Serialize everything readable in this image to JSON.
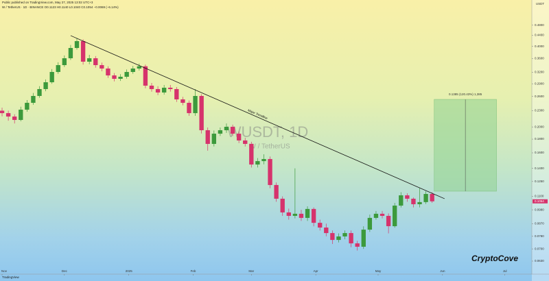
{
  "header": {
    "published": "Public published on TradingView.com, May 27, 2025 13:02 UTC+3",
    "symbol_line": "W / TetherUS · 1D · BINANCE  O0.1123 H0.1140 L0.1040 C0.1054 −0.0069 (−6.14%)",
    "currency": "USDT"
  },
  "watermark": {
    "symbol": "WUSDT, 1D",
    "name": "W / TetherUS"
  },
  "brand": "CryptoCove",
  "footer": "TradingView",
  "chart_data": {
    "type": "candlestick",
    "log_scale": true,
    "grid": false,
    "up_color": "#3c9a3c",
    "down_color": "#d6336c",
    "xlim": [
      -31,
      225
    ],
    "ylim": [
      0.058,
      0.53
    ],
    "xticks": [
      {
        "value": -30,
        "label": "Nov"
      },
      {
        "value": 0,
        "label": "Dec"
      },
      {
        "value": 31,
        "label": "2025"
      },
      {
        "value": 62,
        "label": "Feb"
      },
      {
        "value": 90,
        "label": "Mar"
      },
      {
        "value": 121,
        "label": "Apr"
      },
      {
        "value": 151,
        "label": "May"
      },
      {
        "value": 182,
        "label": "Jun"
      },
      {
        "value": 212,
        "label": "Jul"
      }
    ],
    "yticks": [
      {
        "value": 0.48,
        "label": "0.4800"
      },
      {
        "value": 0.44,
        "label": "0.4400"
      },
      {
        "value": 0.4,
        "label": "0.4000"
      },
      {
        "value": 0.36,
        "label": "0.3600"
      },
      {
        "value": 0.32,
        "label": "0.3200"
      },
      {
        "value": 0.29,
        "label": "0.2900"
      },
      {
        "value": 0.26,
        "label": "0.2600"
      },
      {
        "value": 0.23,
        "label": "0.2300"
      },
      {
        "value": 0.2,
        "label": "0.2000"
      },
      {
        "value": 0.18,
        "label": "0.1800"
      },
      {
        "value": 0.16,
        "label": "0.1600"
      },
      {
        "value": 0.14,
        "label": "0.1400"
      },
      {
        "value": 0.125,
        "label": "0.1250"
      },
      {
        "value": 0.11,
        "label": "0.1100"
      },
      {
        "value": 0.098,
        "label": "0.0980"
      },
      {
        "value": 0.087,
        "label": "0.0870"
      },
      {
        "value": 0.078,
        "label": "0.0780"
      },
      {
        "value": 0.07,
        "label": "0.0700"
      },
      {
        "value": 0.063,
        "label": "0.0630"
      }
    ],
    "x": [
      -30,
      -27,
      -24,
      -21,
      -18,
      -15,
      -12,
      -9,
      -6,
      -3,
      0,
      3,
      6,
      9,
      12,
      15,
      18,
      21,
      24,
      27,
      30,
      33,
      36,
      39,
      42,
      45,
      48,
      51,
      54,
      57,
      60,
      63,
      66,
      69,
      72,
      75,
      78,
      81,
      84,
      87,
      90,
      93,
      96,
      99,
      102,
      105,
      108,
      111,
      114,
      117,
      120,
      123,
      126,
      129,
      132,
      135,
      138,
      141,
      144,
      147,
      150,
      153,
      156,
      159,
      162,
      165,
      168,
      171,
      174,
      177
    ],
    "open": [
      0.23,
      0.2252,
      0.2187,
      0.2124,
      0.232,
      0.2461,
      0.2611,
      0.277,
      0.2938,
      0.321,
      0.3405,
      0.3612,
      0.3946,
      0.4186,
      0.3507,
      0.3612,
      0.3405,
      0.3306,
      0.3116,
      0.3026,
      0.308,
      0.321,
      0.3306,
      0.337,
      0.2853,
      0.277,
      0.269,
      0.2803,
      0.277,
      0.2535,
      0.2461,
      0.2252,
      0.2611,
      0.1944,
      0.1728,
      0.1887,
      0.1944,
      0.2002,
      0.1887,
      0.178,
      0.1728,
      0.1447,
      0.149,
      0.1517,
      0.1213,
      0.1078,
      0.0958,
      0.093,
      0.0947,
      0.0914,
      0.0987,
      0.0876,
      0.0841,
      0.0802,
      0.0756,
      0.0779,
      0.0802,
      0.0734,
      0.0713,
      0.0826,
      0.0914,
      0.0947,
      0.093,
      0.0851,
      0.1016,
      0.111,
      0.1078,
      0.1028,
      0.1047,
      0.1123
    ],
    "high": [
      0.236,
      0.23,
      0.223,
      0.238,
      0.252,
      0.268,
      0.284,
      0.301,
      0.329,
      0.349,
      0.37,
      0.405,
      0.43,
      0.425,
      0.372,
      0.368,
      0.348,
      0.337,
      0.318,
      0.315,
      0.328,
      0.338,
      0.345,
      0.342,
      0.292,
      0.284,
      0.287,
      0.287,
      0.282,
      0.259,
      0.251,
      0.277,
      0.265,
      0.199,
      0.194,
      0.199,
      0.206,
      0.204,
      0.192,
      0.182,
      0.176,
      0.153,
      0.158,
      0.155,
      0.124,
      0.11,
      0.099,
      0.14,
      0.098,
      0.101,
      0.1,
      0.09,
      0.087,
      0.082,
      0.08,
      0.082,
      0.082,
      0.075,
      0.085,
      0.094,
      0.097,
      0.097,
      0.095,
      0.104,
      0.114,
      0.113,
      0.109,
      0.118,
      0.115,
      0.114
    ],
    "low": [
      0.219,
      0.211,
      0.206,
      0.21,
      0.228,
      0.242,
      0.257,
      0.272,
      0.29,
      0.316,
      0.335,
      0.356,
      0.389,
      0.342,
      0.343,
      0.333,
      0.323,
      0.305,
      0.296,
      0.297,
      0.303,
      0.316,
      0.325,
      0.279,
      0.271,
      0.263,
      0.264,
      0.271,
      0.248,
      0.241,
      0.22,
      0.22,
      0.189,
      0.163,
      0.169,
      0.185,
      0.19,
      0.185,
      0.174,
      0.169,
      0.141,
      0.141,
      0.145,
      0.118,
      0.105,
      0.093,
      0.09,
      0.091,
      0.089,
      0.089,
      0.085,
      0.082,
      0.078,
      0.073,
      0.074,
      0.076,
      0.071,
      0.069,
      0.07,
      0.081,
      0.09,
      0.091,
      0.08,
      0.084,
      0.1,
      0.105,
      0.1,
      0.1,
      0.103,
      0.104
    ],
    "close": [
      0.2252,
      0.2187,
      0.2124,
      0.232,
      0.2461,
      0.2611,
      0.277,
      0.2938,
      0.321,
      0.3405,
      0.3612,
      0.3946,
      0.4186,
      0.3507,
      0.3612,
      0.3405,
      0.3306,
      0.3116,
      0.3026,
      0.308,
      0.321,
      0.3306,
      0.337,
      0.2853,
      0.277,
      0.269,
      0.2803,
      0.277,
      0.2535,
      0.2461,
      0.2252,
      0.2611,
      0.1944,
      0.1728,
      0.1887,
      0.1944,
      0.2002,
      0.1887,
      0.178,
      0.1728,
      0.1447,
      0.149,
      0.1517,
      0.1213,
      0.1078,
      0.0958,
      0.093,
      0.0947,
      0.0914,
      0.0987,
      0.0876,
      0.0841,
      0.0802,
      0.0756,
      0.0779,
      0.0802,
      0.0734,
      0.0713,
      0.0826,
      0.0914,
      0.0947,
      0.093,
      0.0851,
      0.1016,
      0.111,
      0.1078,
      0.1028,
      0.1047,
      0.1123,
      0.1054
    ],
    "trendline": {
      "label": "Major Trendline",
      "x": [
        3,
        183
      ],
      "y": [
        0.439,
        0.1078
      ]
    },
    "position": {
      "label": "0.1385 (120.43%) 1,385",
      "x": [
        178,
        208
      ],
      "entry": 0.115,
      "target": 0.2535
    }
  }
}
